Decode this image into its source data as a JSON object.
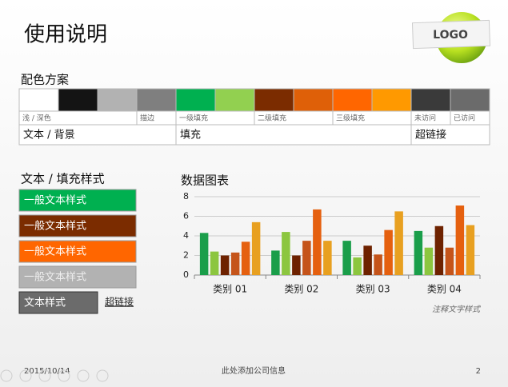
{
  "header": {
    "title": "使用说明",
    "logo": "LOGO"
  },
  "palette": {
    "heading": "配色方案",
    "colors": [
      "#ffffff",
      "#141414",
      "#b2b2b2",
      "#7f7f7f",
      "#00b050",
      "#92d050",
      "#7b2c00",
      "#df6008",
      "#ff6600",
      "#ff9900",
      "#3a3a3a",
      "#6b6b6b"
    ],
    "labels": [
      "浅 / 深色",
      "描边",
      "一级填充",
      "二级填充",
      "三级填充",
      "未访问",
      "已访问"
    ],
    "roles": [
      "文本 / 背景",
      "填充",
      "超链接"
    ]
  },
  "text_styles": {
    "heading": "文本 / 填充样式",
    "buttons": [
      {
        "label": "一般文本样式",
        "color": "#00b050"
      },
      {
        "label": "一般文本样式",
        "color": "#7b2c00"
      },
      {
        "label": "一般文本样式",
        "color": "#ff6600"
      },
      {
        "label": "一般文本样式",
        "color": "#b2b2b2"
      },
      {
        "label": "文本样式",
        "color": "#6b6b6b"
      }
    ],
    "link": "超链接"
  },
  "chart_data": {
    "type": "bar",
    "title": "数据图表",
    "annotation": "注释文字样式",
    "categories": [
      "类别 01",
      "类别 02",
      "类别 03",
      "类别 04"
    ],
    "series": [
      {
        "color": "#1a9e4a",
        "values": [
          4.3,
          2.5,
          3.5,
          4.5
        ]
      },
      {
        "color": "#8cc63f",
        "values": [
          2.4,
          4.4,
          1.8,
          2.8
        ]
      },
      {
        "color": "#6e2200",
        "values": [
          2.0,
          2.0,
          3.0,
          5.0
        ]
      },
      {
        "color": "#c5541a",
        "values": [
          2.3,
          3.5,
          2.1,
          2.8
        ]
      },
      {
        "color": "#e5600f",
        "values": [
          3.4,
          6.7,
          4.6,
          7.1
        ]
      },
      {
        "color": "#e8a020",
        "values": [
          5.4,
          3.5,
          6.5,
          5.1
        ]
      }
    ],
    "ylim": [
      0,
      8
    ],
    "yticks": [
      0,
      2,
      4,
      6,
      8
    ],
    "grid": true
  },
  "footer": {
    "date": "2015/10/14",
    "company": "此处添加公司信息",
    "page": "2"
  }
}
